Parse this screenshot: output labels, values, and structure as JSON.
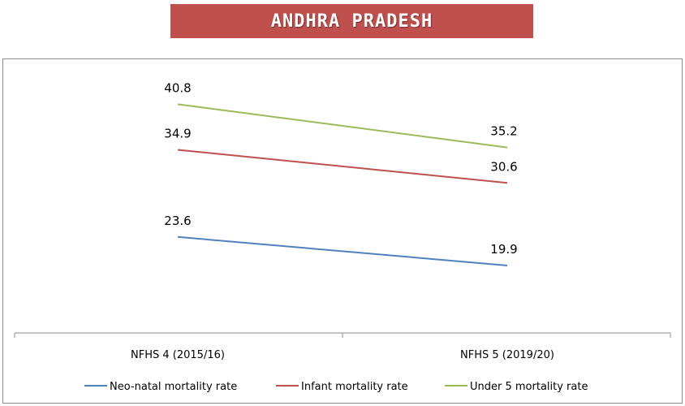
{
  "banner": {
    "title": "ANDHRA PRADESH"
  },
  "chart_data": {
    "type": "line",
    "categories": [
      "NFHS 4 (2015/16)",
      "NFHS 5 (2019/20)"
    ],
    "series": [
      {
        "name": "Neo-natal mortality rate",
        "values": [
          23.6,
          19.9
        ],
        "color": "#4f81bd"
      },
      {
        "name": "Infant mortality rate",
        "values": [
          34.9,
          30.6
        ],
        "color": "#c0504d"
      },
      {
        "name": "Under 5 mortality rate",
        "values": [
          40.8,
          35.2
        ],
        "color": "#9bbb59"
      }
    ],
    "title": "ANDHRA PRADESH",
    "xlabel": "",
    "ylabel": "",
    "ylim": [
      12,
      45
    ],
    "grid": false,
    "legend": "bottom",
    "data_labels": true
  }
}
